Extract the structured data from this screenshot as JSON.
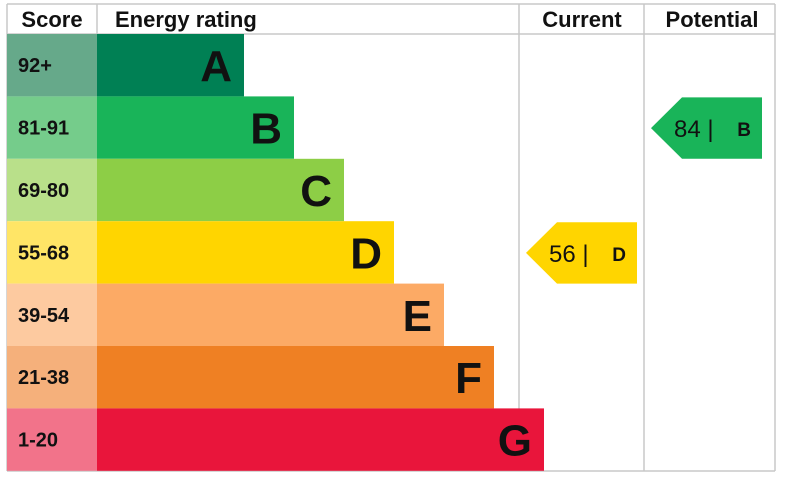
{
  "chart_data": {
    "type": "bar",
    "headers": {
      "score": "Score",
      "rating": "Energy rating",
      "current": "Current",
      "potential": "Potential"
    },
    "bands": [
      {
        "letter": "A",
        "range": "92+",
        "color": "#008054",
        "score_color": "#66a98a"
      },
      {
        "letter": "B",
        "range": "81-91",
        "color": "#19b459",
        "score_color": "#75cc8b"
      },
      {
        "letter": "C",
        "range": "69-80",
        "color": "#8dce46",
        "score_color": "#b9e08a"
      },
      {
        "letter": "D",
        "range": "55-68",
        "color": "#ffd500",
        "score_color": "#ffe566"
      },
      {
        "letter": "E",
        "range": "39-54",
        "color": "#fcaa65",
        "score_color": "#fdcaa0"
      },
      {
        "letter": "F",
        "range": "21-38",
        "color": "#ef8023",
        "score_color": "#f5b07b"
      },
      {
        "letter": "G",
        "range": "1-20",
        "color": "#e9153b",
        "score_color": "#f2738a"
      }
    ],
    "current": {
      "value": 56,
      "separator": "|",
      "letter": "D",
      "color": "#ffd500"
    },
    "potential": {
      "value": 84,
      "separator": "|",
      "letter": "B",
      "color": "#19b459"
    }
  }
}
